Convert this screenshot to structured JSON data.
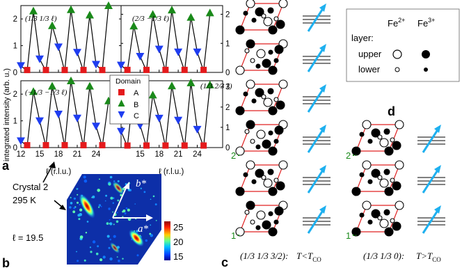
{
  "panel_letters": {
    "a": "a",
    "b": "b",
    "c": "c",
    "d": "d"
  },
  "panel_a": {
    "ylabel": "integrated intensity (arb. u.)",
    "xlabel": "ℓ (r.l.u.)",
    "xticks": [
      "12",
      "15",
      "18",
      "21",
      "24"
    ],
    "yticks_left": [
      "0",
      "1",
      "2"
    ],
    "yticks_right": [
      "0",
      "1",
      "2",
      "3"
    ],
    "subplot_labels": [
      "(1/3 1/3 ℓ)",
      "(2/3 −1/3 ℓ)",
      "(−1/3 −1/3 ℓ)",
      "(1/3 2/3 ℓ)"
    ],
    "legend": {
      "title": "Domain",
      "items": [
        "A",
        "B",
        "C"
      ]
    },
    "colors": {
      "A": "#e41a1c",
      "B": "#1a8a1a",
      "C": "#1f3df0"
    }
  },
  "chart_data": [
    {
      "type": "line",
      "title": "(1/3 1/3 ℓ)",
      "xlabel": "ℓ (r.l.u.)",
      "ylabel": "integrated intensity (arb. u.)",
      "xlim": [
        12,
        28
      ],
      "ylim": [
        0,
        2.5
      ],
      "series": [
        {
          "name": "A",
          "x": [
            13,
            16,
            19,
            22,
            25
          ],
          "values": [
            0.05,
            0.05,
            0.05,
            0.05,
            0.05
          ]
        },
        {
          "name": "B",
          "x": [
            14,
            17,
            20,
            23,
            26
          ],
          "values": [
            2.3,
            1.75,
            2.35,
            2.15,
            2.5
          ]
        },
        {
          "name": "C",
          "x": [
            12,
            15,
            18,
            21,
            24
          ],
          "values": [
            0.25,
            0.5,
            0.95,
            0.75,
            0.3
          ]
        }
      ]
    },
    {
      "type": "line",
      "title": "(2/3 −1/3 ℓ)",
      "xlabel": "ℓ (r.l.u.)",
      "ylabel": "",
      "xlim": [
        12,
        28
      ],
      "ylim": [
        0,
        2.3
      ],
      "series": [
        {
          "name": "A",
          "x": [
            13,
            16,
            19,
            22,
            25
          ],
          "values": [
            0.05,
            0.05,
            0.05,
            0.05,
            0.05
          ]
        },
        {
          "name": "B",
          "x": [
            14,
            17,
            20,
            23,
            26
          ],
          "values": [
            1.6,
            2.0,
            2.15,
            1.9,
            2.05
          ]
        },
        {
          "name": "C",
          "x": [
            12,
            15,
            18,
            21,
            24
          ],
          "values": [
            0.25,
            0.55,
            0.8,
            0.7,
            0.7
          ]
        }
      ]
    },
    {
      "type": "line",
      "title": "(−1/3 −1/3 ℓ)",
      "xlabel": "ℓ (r.l.u.)",
      "ylabel": "",
      "xlim": [
        12,
        28
      ],
      "ylim": [
        0,
        2.5
      ],
      "series": [
        {
          "name": "A",
          "x": [
            13,
            16,
            19,
            22,
            25
          ],
          "values": [
            0.05,
            0.05,
            0.05,
            0.05,
            0.05
          ]
        },
        {
          "name": "B",
          "x": [
            14,
            17,
            20,
            23,
            26
          ],
          "values": [
            2.1,
            2.3,
            2.5,
            2.3,
            1.75
          ]
        },
        {
          "name": "C",
          "x": [
            12,
            15,
            18,
            21,
            24
          ],
          "values": [
            0.25,
            1.0,
            1.25,
            1.1,
            0.8
          ]
        }
      ]
    },
    {
      "type": "line",
      "title": "(1/3 2/3 ℓ)",
      "xlabel": "ℓ (r.l.u.)",
      "ylabel": "",
      "xlim": [
        12,
        28
      ],
      "ylim": [
        0,
        3.3
      ],
      "series": [
        {
          "name": "A",
          "x": [
            13,
            16,
            19,
            22,
            25
          ],
          "values": [
            0.05,
            0.05,
            0.05,
            0.05,
            0.05
          ]
        },
        {
          "name": "B",
          "x": [
            14,
            17,
            20,
            23,
            26
          ],
          "values": [
            2.9,
            2.6,
            3.05,
            3.2,
            3.1
          ]
        },
        {
          "name": "C",
          "x": [
            12,
            15,
            18,
            21,
            24
          ],
          "values": [
            0.8,
            1.1,
            1.45,
            1.35,
            0.9
          ]
        }
      ]
    }
  ],
  "panel_b": {
    "crystal_label": [
      "Crystal 2",
      "295 K"
    ],
    "l_label": "ℓ = 19.5",
    "axis_labels": {
      "b": "b*",
      "a": "a*"
    },
    "colorbar_ticks": [
      "25",
      "20",
      "15"
    ]
  },
  "panel_c": {
    "caption_q": "(1/3 1/3 3/2):",
    "caption_t": "T<T",
    "caption_sub": "CO",
    "markers": {
      "top": "2",
      "bottom": "1"
    }
  },
  "panel_d": {
    "caption_q": "(1/3 1/3 0):",
    "caption_t": "T>T",
    "caption_sub": "CO",
    "markers": {
      "top": "2",
      "bottom": "1"
    }
  },
  "legend_d": {
    "fe2": "Fe",
    "fe2_sup": "2+",
    "fe3": "Fe",
    "fe3_sup": "3+",
    "title": "layer:",
    "rows": [
      "upper",
      "lower"
    ]
  }
}
